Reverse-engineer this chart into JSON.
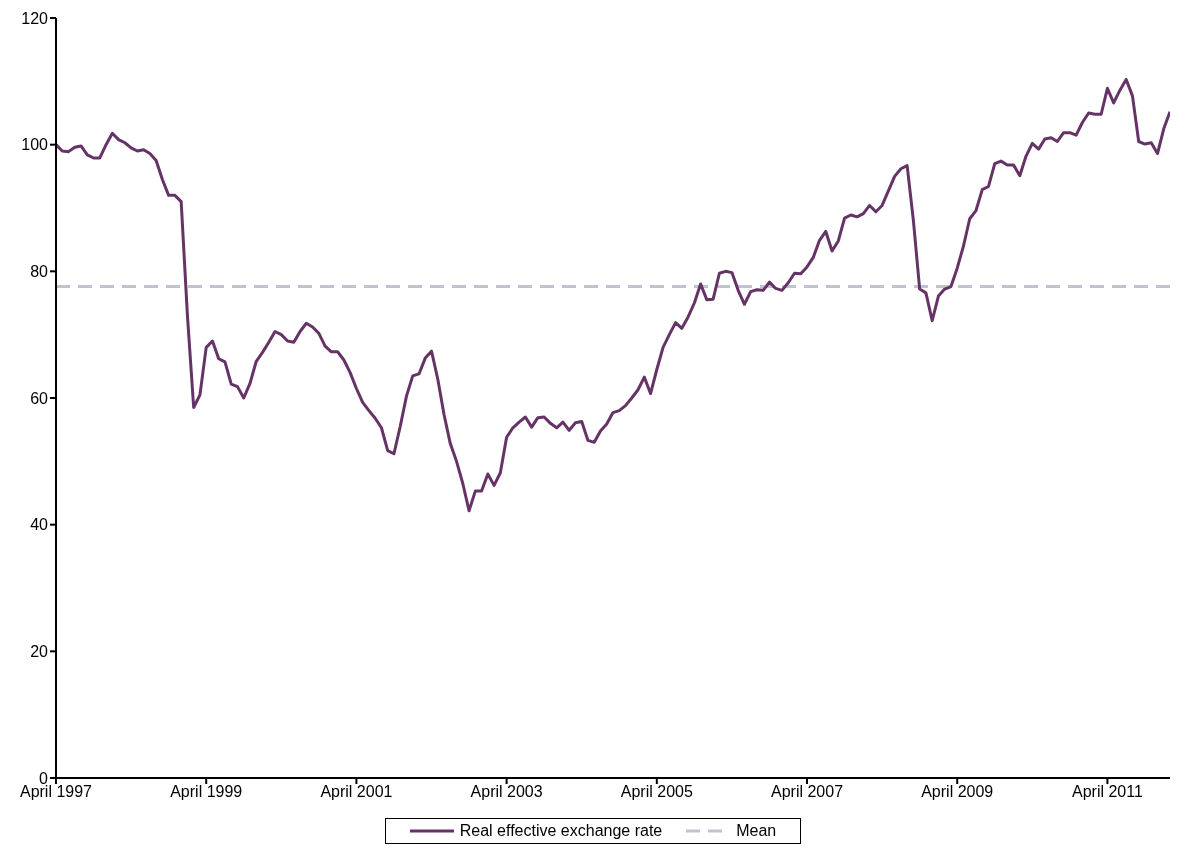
{
  "chart_data": {
    "type": "line",
    "x": [
      "1997-04",
      "1997-05",
      "1997-06",
      "1997-07",
      "1997-08",
      "1997-09",
      "1997-10",
      "1997-11",
      "1997-12",
      "1998-01",
      "1998-02",
      "1998-03",
      "1998-04",
      "1998-05",
      "1998-06",
      "1998-07",
      "1998-08",
      "1998-09",
      "1998-10",
      "1998-11",
      "1998-12",
      "1999-01",
      "1999-02",
      "1999-03",
      "1999-04",
      "1999-05",
      "1999-06",
      "1999-07",
      "1999-08",
      "1999-09",
      "1999-10",
      "1999-11",
      "1999-12",
      "2000-01",
      "2000-02",
      "2000-03",
      "2000-04",
      "2000-05",
      "2000-06",
      "2000-07",
      "2000-08",
      "2000-09",
      "2000-10",
      "2000-11",
      "2000-12",
      "2001-01",
      "2001-02",
      "2001-03",
      "2001-04",
      "2001-05",
      "2001-06",
      "2001-07",
      "2001-08",
      "2001-09",
      "2001-10",
      "2001-11",
      "2001-12",
      "2002-01",
      "2002-02",
      "2002-03",
      "2002-04",
      "2002-05",
      "2002-06",
      "2002-07",
      "2002-08",
      "2002-09",
      "2002-10",
      "2002-11",
      "2002-12",
      "2003-01",
      "2003-02",
      "2003-03",
      "2003-04",
      "2003-05",
      "2003-06",
      "2003-07",
      "2003-08",
      "2003-09",
      "2003-10",
      "2003-11",
      "2003-12",
      "2004-01",
      "2004-02",
      "2004-03",
      "2004-04",
      "2004-05",
      "2004-06",
      "2004-07",
      "2004-08",
      "2004-09",
      "2004-10",
      "2004-11",
      "2004-12",
      "2005-01",
      "2005-02",
      "2005-03",
      "2005-04",
      "2005-05",
      "2005-06",
      "2005-07",
      "2005-08",
      "2005-09",
      "2005-10",
      "2005-11",
      "2005-12",
      "2006-01",
      "2006-02",
      "2006-03",
      "2006-04",
      "2006-05",
      "2006-06",
      "2006-07",
      "2006-08",
      "2006-09",
      "2006-10",
      "2006-11",
      "2006-12",
      "2007-01",
      "2007-02",
      "2007-03",
      "2007-04",
      "2007-05",
      "2007-06",
      "2007-07",
      "2007-08",
      "2007-09",
      "2007-10",
      "2007-11",
      "2007-12",
      "2008-01",
      "2008-02",
      "2008-03",
      "2008-04",
      "2008-05",
      "2008-06",
      "2008-07",
      "2008-08",
      "2008-09",
      "2008-10",
      "2008-11",
      "2008-12",
      "2009-01",
      "2009-02",
      "2009-03",
      "2009-04",
      "2009-05",
      "2009-06",
      "2009-07",
      "2009-08",
      "2009-09",
      "2009-10",
      "2009-11",
      "2009-12",
      "2010-01",
      "2010-02",
      "2010-03",
      "2010-04",
      "2010-05",
      "2010-06",
      "2010-07",
      "2010-08",
      "2010-09",
      "2010-10",
      "2010-11",
      "2010-12",
      "2011-01",
      "2011-02",
      "2011-03",
      "2011-04",
      "2011-05",
      "2011-06",
      "2011-07",
      "2011-08",
      "2011-09",
      "2011-10",
      "2011-11",
      "2011-12",
      "2012-01",
      "2012-02"
    ],
    "series": [
      {
        "name": "Real effective exchange rate",
        "color": "#663366",
        "values": [
          100,
          99,
          98.9,
          99.6,
          99.8,
          98.4,
          97.9,
          97.9,
          100,
          101.8,
          100.8,
          100.3,
          99.5,
          99,
          99.2,
          98.6,
          97.5,
          94.5,
          92,
          92,
          91,
          73,
          58.5,
          60.5,
          68,
          69,
          66.2,
          65.7,
          62.2,
          61.8,
          60,
          62.3,
          65.8,
          67.2,
          68.8,
          70.5,
          70,
          69,
          68.8,
          70.5,
          71.8,
          71.2,
          70.2,
          68.2,
          67.3,
          67.3,
          66,
          64,
          61.5,
          59.3,
          58,
          56.8,
          55.3,
          51.7,
          51.2,
          55.5,
          60.3,
          63.5,
          63.8,
          66.3,
          67.4,
          63,
          57.4,
          52.8,
          50,
          46.5,
          42.2,
          45.3,
          45.3,
          48,
          46.2,
          48.2,
          53.8,
          55.3,
          56.2,
          57,
          55.4,
          56.9,
          57,
          56,
          55.3,
          56.2,
          54.9,
          56.1,
          56.3,
          53.3,
          53,
          54.8,
          55.9,
          57.7,
          58,
          58.8,
          60,
          61.3,
          63.3,
          60.7,
          64.5,
          68,
          70,
          71.9,
          71,
          72.8,
          75,
          78,
          75.5,
          75.6,
          79.7,
          80,
          79.8,
          77,
          74.8,
          76.8,
          77.1,
          77,
          78.3,
          77.3,
          77,
          78.2,
          79.7,
          79.6,
          80.7,
          82.2,
          84.9,
          86.3,
          83.2,
          84.8,
          88.4,
          88.9,
          88.6,
          89.1,
          90.4,
          89.4,
          90.4,
          92.7,
          95,
          96.2,
          96.7,
          88,
          77.2,
          76.6,
          72.2,
          76.1,
          77.2,
          77.6,
          80.5,
          84,
          88.3,
          89.6,
          92.9,
          93.4,
          97,
          97.4,
          96.8,
          96.8,
          95.1,
          98.2,
          100.2,
          99.3,
          100.9,
          101.1,
          100.5,
          101.9,
          101.9,
          101.5,
          103.5,
          105,
          104.8,
          104.8,
          108.9,
          106.6,
          108.6,
          110.3,
          107.7,
          100.5,
          100.1,
          100.3,
          98.6,
          102.5,
          105.2
        ]
      }
    ],
    "ref_lines": [
      {
        "axis": "y",
        "value": 77.6,
        "label": "Mean",
        "color": "#c0c4d2",
        "line_style": "dashed"
      }
    ],
    "xlim": [
      "1997-04",
      "2012-02"
    ],
    "xticks": [
      {
        "value": "1997-04",
        "label": "April 1997"
      },
      {
        "value": "1999-04",
        "label": "April 1999"
      },
      {
        "value": "2001-04",
        "label": "April 2001"
      },
      {
        "value": "2003-04",
        "label": "April 2003"
      },
      {
        "value": "2005-04",
        "label": "April 2005"
      },
      {
        "value": "2007-04",
        "label": "April 2007"
      },
      {
        "value": "2009-04",
        "label": "April 2009"
      },
      {
        "value": "2011-04",
        "label": "April 2011"
      }
    ],
    "ylim": [
      0,
      120
    ],
    "yticks": [
      0,
      20,
      40,
      60,
      80,
      100,
      120
    ],
    "legend": "bottom",
    "marker": "none",
    "line_style": "solid"
  }
}
